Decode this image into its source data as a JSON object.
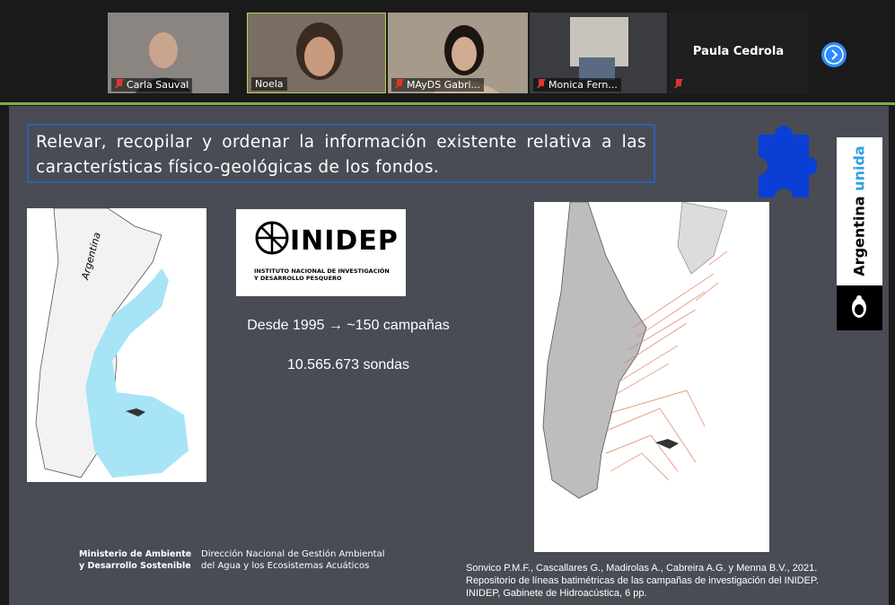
{
  "meeting": {
    "participants": [
      {
        "name": "Carla Sauval"
      },
      {
        "name": "Noela"
      },
      {
        "name": "MAyDS Gabri..."
      },
      {
        "name": "Monica Fern..."
      },
      {
        "name": "Paula Cedrola"
      }
    ]
  },
  "slide": {
    "heading": "Relevar, recopilar y ordenar la información existente relativa a las características físico-geológicas de los fondos.",
    "map_label": "Argentina",
    "logo": {
      "name": "INIDEP",
      "line1": "INSTITUTO NACIONAL DE INVESTIGACIÓN",
      "line2": "Y DESARROLLO PESQUERO"
    },
    "stats": [
      "Desde 1995 → ~150 campañas",
      "10.565.673 sondas"
    ],
    "brand": {
      "word1": "Argentina",
      "word2": "unida"
    },
    "footer": {
      "ministry": [
        "Ministerio de Ambiente",
        "y Desarrollo Sostenible"
      ],
      "direction": [
        "Dirección Nacional de Gestión Ambiental",
        "del Agua y los Ecosistemas Acuáticos"
      ],
      "citation": [
        "Sonvico P.M.F., Cascallares G., Madirolas A., Cabreira A.G. y Menna B.V., 2021.",
        "Repositorio de líneas batimétricas de las campañas de investigación del INIDEP.",
        "INIDEP, Gabinete de Hidroacústica, 6 pp."
      ]
    }
  }
}
